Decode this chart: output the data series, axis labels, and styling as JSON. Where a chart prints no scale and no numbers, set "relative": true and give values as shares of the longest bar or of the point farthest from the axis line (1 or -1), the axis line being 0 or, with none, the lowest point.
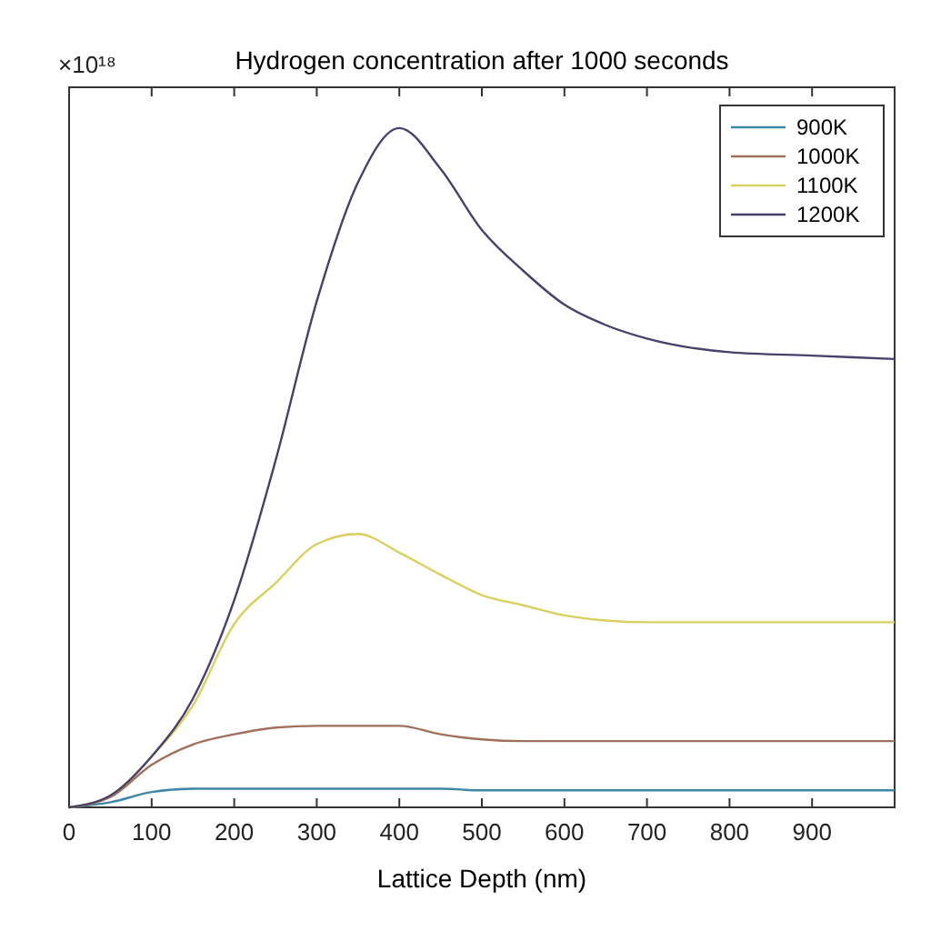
{
  "chart_data": {
    "type": "line",
    "title": "Hydrogen concentration after 1000 seconds",
    "xlabel": "Lattice Depth (nm)",
    "relative": true,
    "annotations": [
      "×10¹⁸"
    ],
    "x": [
      0,
      50,
      100,
      150,
      200,
      250,
      300,
      350,
      400,
      450,
      500,
      550,
      600,
      650,
      700,
      800,
      900,
      1000
    ],
    "xlim": [
      0,
      1000
    ],
    "xticks": [
      0,
      100,
      200,
      300,
      400,
      500,
      600,
      700,
      800,
      900
    ],
    "series": [
      {
        "name": "900K",
        "color": "#3f87a6",
        "values": [
          0,
          0.0075,
          0.0225,
          0.0275,
          0.0275,
          0.0275,
          0.0275,
          0.0275,
          0.0275,
          0.0275,
          0.025,
          0.025,
          0.025,
          0.025,
          0.025,
          0.025,
          0.025,
          0.025
        ]
      },
      {
        "name": "1000K",
        "color": "#a0705a",
        "values": [
          0,
          0.015,
          0.0625,
          0.0925,
          0.1075,
          0.1175,
          0.12,
          0.12,
          0.12,
          0.1075,
          0.1,
          0.0975,
          0.0975,
          0.0975,
          0.0975,
          0.0975,
          0.0975,
          0.0975
        ]
      },
      {
        "name": "1100K",
        "color": "#d8d060",
        "values": [
          0,
          0.0175,
          0.075,
          0.15,
          0.27,
          0.33,
          0.3875,
          0.4025,
          0.375,
          0.3425,
          0.3125,
          0.2975,
          0.2825,
          0.275,
          0.2725,
          0.2725,
          0.2725,
          0.2725
        ]
      },
      {
        "name": "1200K",
        "color": "#4a3f6b",
        "values": [
          0,
          0.0175,
          0.075,
          0.16,
          0.305,
          0.51,
          0.745,
          0.92,
          1,
          0.94,
          0.85,
          0.79,
          0.74,
          0.71,
          0.69,
          0.67,
          0.665,
          0.66
        ]
      }
    ],
    "legend": "top right",
    "grid": false
  }
}
